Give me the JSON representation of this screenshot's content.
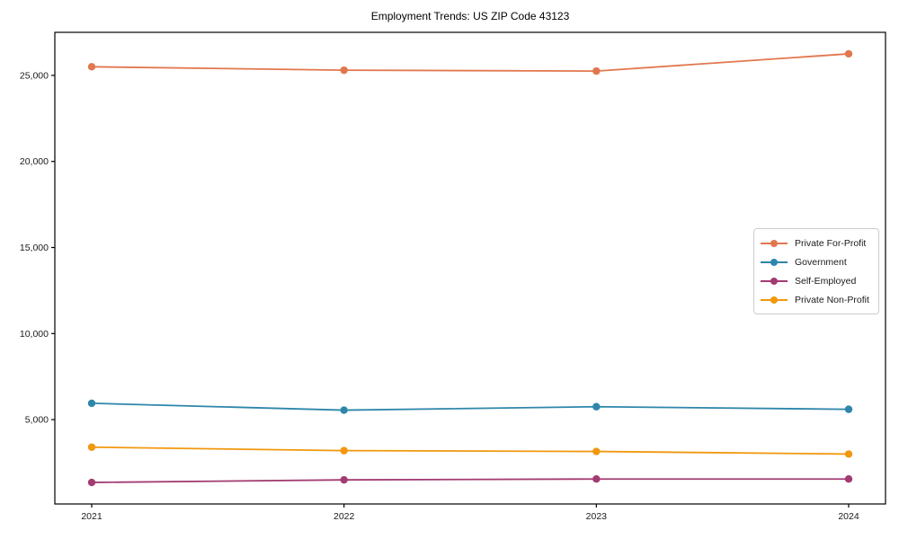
{
  "chart_data": {
    "type": "line",
    "title": "Employment Trends: US ZIP Code 43123",
    "x": [
      "2021",
      "2022",
      "2023",
      "2024"
    ],
    "series": [
      {
        "name": "Private For-Profit",
        "color": "#e2774e",
        "values": [
          25500,
          25300,
          25250,
          26250
        ]
      },
      {
        "name": "Government",
        "color": "#2e86ab",
        "values": [
          5950,
          5550,
          5750,
          5600
        ]
      },
      {
        "name": "Self-Employed",
        "color": "#a23b72",
        "values": [
          1350,
          1500,
          1550,
          1550
        ]
      },
      {
        "name": "Private Non-Profit",
        "color": "#f1980e",
        "values": [
          3400,
          3200,
          3150,
          3000
        ]
      }
    ],
    "xlabel": "",
    "ylabel": "",
    "ylim": [
      100,
      27500
    ],
    "yticks": [
      5000,
      10000,
      15000,
      20000,
      25000
    ],
    "ytick_labels": [
      "5,000",
      "10,000",
      "15,000",
      "20,000",
      "25,000"
    ],
    "grid": false,
    "legend_position": "center-right",
    "marker": "circle",
    "axis_color": "#000000",
    "tick_label_color": "#1a1a1a",
    "background": "#ffffff"
  }
}
